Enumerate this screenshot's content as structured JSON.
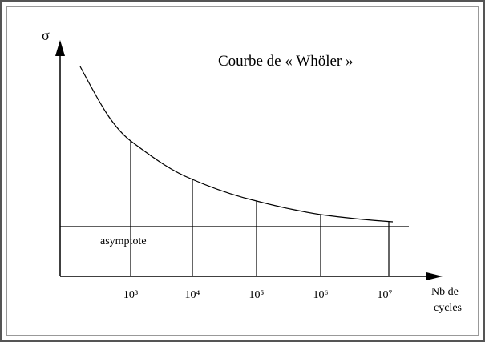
{
  "title": "Courbe de « Whöler »",
  "y_axis_label": "σ",
  "asymptote_label": "asymptote",
  "x_labels": [
    "10³",
    "10⁴",
    "10⁵",
    "10⁶",
    "10⁷"
  ],
  "x_axis_label": [
    "Nb de",
    "cycles"
  ]
}
